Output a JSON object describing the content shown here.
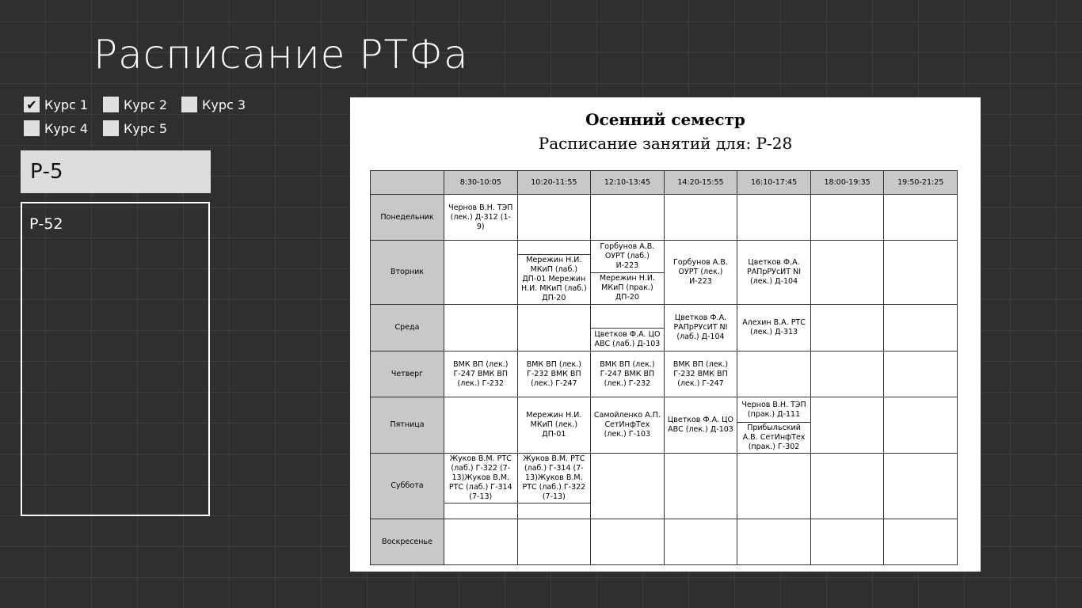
{
  "app": {
    "title": "Расписание  РТФа"
  },
  "courses": [
    {
      "label": "Курс 1",
      "checked": true
    },
    {
      "label": "Курс 2",
      "checked": false
    },
    {
      "label": "Курс 3",
      "checked": false
    },
    {
      "label": "Курс 4",
      "checked": false
    },
    {
      "label": "Курс 5",
      "checked": false
    }
  ],
  "search": {
    "value": "Р-5"
  },
  "groups": [
    "Р-52"
  ],
  "schedule": {
    "semester": "Осенний семестр",
    "subtitle": "Расписание занятий для: Р-28",
    "times": [
      "8:30-10:05",
      "10:20-11:55",
      "12:10-13:45",
      "14:20-15:55",
      "16:10-17:45",
      "18:00-19:35",
      "19:50-21:25"
    ],
    "rows": [
      {
        "day": "Понедельник",
        "cells": [
          [
            "Чернов В.Н. ТЭП (лек.) Д-312 (1-9)"
          ],
          [
            ""
          ],
          [
            ""
          ],
          [
            ""
          ],
          [
            ""
          ],
          [
            ""
          ],
          [
            ""
          ]
        ]
      },
      {
        "day": "Вторник",
        "cells": [
          [
            ""
          ],
          [
            "",
            "Мережин Н.И. МКиП (лаб.) ДП-01 Мережин Н.И. МКиП (лаб.) ДП-20"
          ],
          [
            "Горбунов А.В. ОУРТ (лаб.) И-223",
            "Мережин Н.И. МКиП (прак.) ДП-20"
          ],
          [
            "Горбунов А.В. ОУРТ (лек.) И-223"
          ],
          [
            "Цветков Ф.А. РАПрРУсИТ NI (лек.) Д-104"
          ],
          [
            ""
          ],
          [
            ""
          ]
        ]
      },
      {
        "day": "Среда",
        "cells": [
          [
            ""
          ],
          [
            ""
          ],
          [
            "",
            "Цветков Ф.А. ЦО АВС (лаб.) Д-103"
          ],
          [
            "Цветков Ф.А. РАПрРУсИТ NI (лаб.) Д-104"
          ],
          [
            "Алехин В.А. РТС (лек.) Д-313"
          ],
          [
            ""
          ],
          [
            ""
          ]
        ]
      },
      {
        "day": "Четверг",
        "cells": [
          [
            "ВМК ВП (лек.) Г-247 ВМК ВП (лек.) Г-232"
          ],
          [
            "ВМК ВП (лек.) Г-232 ВМК ВП (лек.) Г-247"
          ],
          [
            "ВМК ВП (лек.) Г-247 ВМК ВП (лек.) Г-232"
          ],
          [
            "ВМК ВП (лек.) Г-232 ВМК ВП (лек.) Г-247"
          ],
          [
            ""
          ],
          [
            ""
          ],
          [
            ""
          ]
        ]
      },
      {
        "day": "Пятница",
        "cells": [
          [
            ""
          ],
          [
            "Мережин Н.И. МКиП (лек.) ДП-01"
          ],
          [
            "Самойленко А.П. СетИнфТех (лек.) Г-103"
          ],
          [
            "Цветков Ф.А. ЦО АВС (лек.) Д-103"
          ],
          [
            "Чернов В.Н. ТЭП (прак.) Д-111",
            "Прибыльский А.В. СетИнфТех (прак.) Г-302"
          ],
          [
            ""
          ],
          [
            ""
          ]
        ]
      },
      {
        "day": "Суббота",
        "cells": [
          [
            "Жуков В.М. РТС (лаб.) Г-322 (7-13)Жуков В.М. РТС (лаб.) Г-314 (7-13)",
            ""
          ],
          [
            "Жуков В.М. РТС (лаб.) Г-314 (7-13)Жуков В.М. РТС (лаб.) Г-322 (7-13)",
            ""
          ],
          [
            ""
          ],
          [
            ""
          ],
          [
            ""
          ],
          [
            ""
          ],
          [
            ""
          ]
        ]
      },
      {
        "day": "Воскресенье",
        "cells": [
          [
            ""
          ],
          [
            ""
          ],
          [
            ""
          ],
          [
            ""
          ],
          [
            ""
          ],
          [
            ""
          ],
          [
            ""
          ]
        ]
      }
    ]
  }
}
